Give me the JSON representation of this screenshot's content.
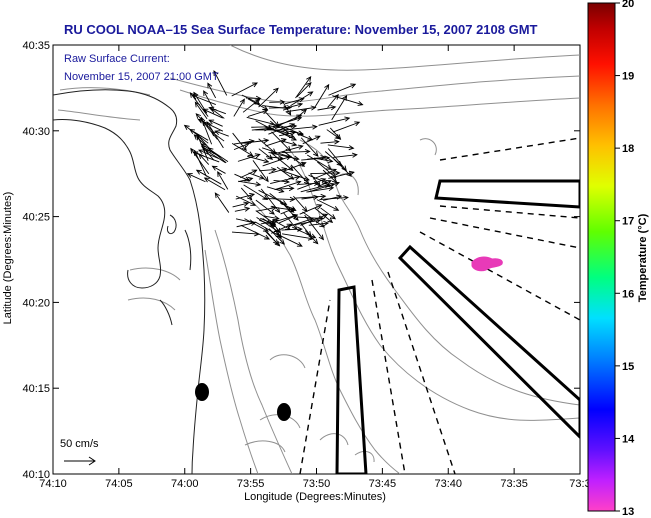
{
  "title": "RU COOL  NOAA–15  Sea Surface Temperature:  November 15, 2007 2108 GMT",
  "current_label": "Raw Surface Current:",
  "current_time": "November 15, 2007 21:00 GMT",
  "scale_label": "50 cm/s",
  "x_axis": {
    "label": "Longitude (Degrees:Minutes)",
    "ticks": [
      "74:10",
      "74:05",
      "74:00",
      "73:55",
      "73:50",
      "73:45",
      "73:40",
      "73:35",
      "73:3"
    ]
  },
  "y_axis": {
    "label": "Latitude (Degrees:Minutes)",
    "ticks": [
      "40:35",
      "40:30",
      "40:25",
      "40:20",
      "40:15",
      "40:10"
    ]
  },
  "colorbar": {
    "label": "Temperature (°C)",
    "ticks": [
      "20",
      "19",
      "18",
      "17",
      "16",
      "15",
      "14",
      "13"
    ],
    "range": [
      13,
      20
    ],
    "colors": [
      "#ff40c0",
      "#8000ff",
      "#0000ff",
      "#00a0ff",
      "#00ffff",
      "#00ff80",
      "#80ff00",
      "#ffff00",
      "#ffa000",
      "#ff3000",
      "#d00000",
      "#800000"
    ]
  },
  "sst_patch_color": "#e83ab8"
}
